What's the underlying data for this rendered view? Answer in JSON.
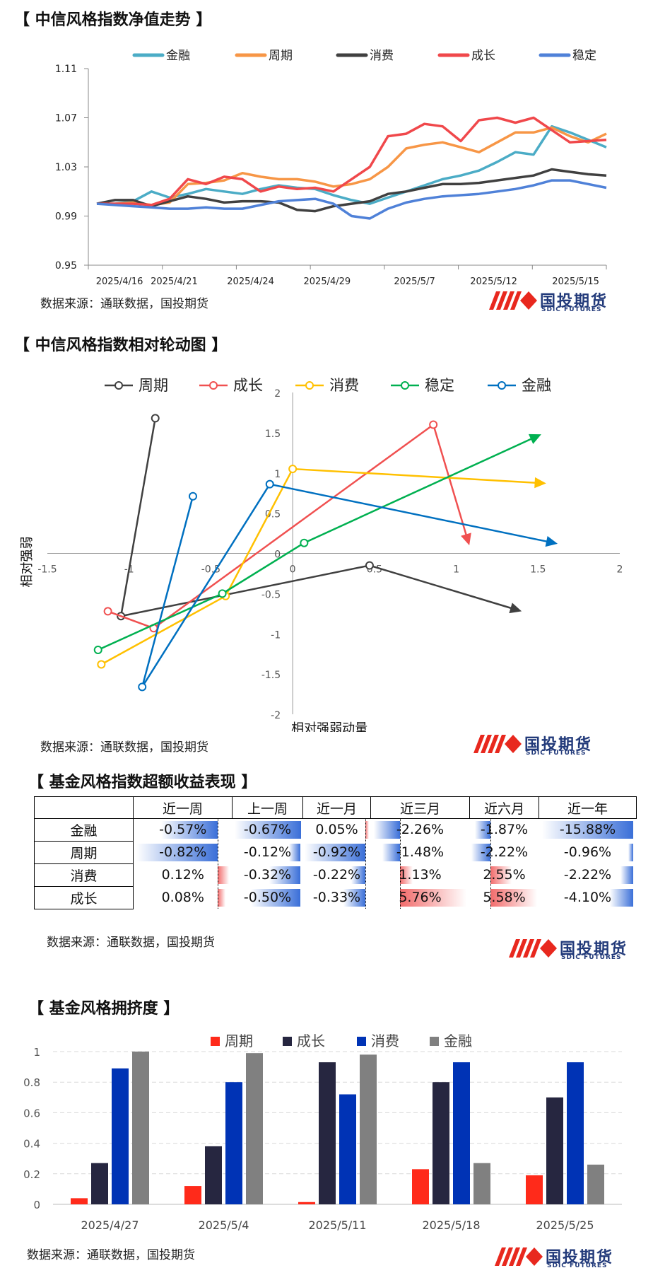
{
  "sections": {
    "s1_title": "【 中信风格指数净值走势 】",
    "s2_title": "【 中信风格指数相对轮动图 】",
    "s3_title": "【 基金风格指数超额收益表现 】",
    "s4_title": "【 基金风格拥挤度 】"
  },
  "source_label": "数据来源：通联数据，国投期货",
  "logo": {
    "cn": "国投期货",
    "en": "SDIC FUTURES"
  },
  "colors": {
    "s1": {
      "金融": "#4bacc6",
      "周期": "#f79646",
      "消费": "#404040",
      "成长": "#f0484b",
      "稳定": "#4f81d8"
    },
    "s2": {
      "周期": "#404040",
      "成长": "#f05050",
      "消费": "#ffc000",
      "稳定": "#00b050",
      "金融": "#0070c0"
    },
    "s4": {
      "周期": "#ff2a1a",
      "成长": "#262640",
      "消费": "#0033b5",
      "金融": "#808080"
    },
    "neg_bar": "#3a6fd8",
    "pos_bar": "#f26b6b"
  },
  "chart_data": [
    {
      "type": "line",
      "title": "",
      "legend": [
        "金融",
        "周期",
        "消费",
        "成长",
        "稳定"
      ],
      "legend_position": "top",
      "ylim": [
        0.95,
        1.11
      ],
      "yticks": [
        "0.95",
        "0.99",
        "1.03",
        "1.07",
        "1.11"
      ],
      "xtick_labels": [
        "2025/4/16",
        "2025/4/21",
        "2025/4/24",
        "2025/4/29",
        "2025/5/7",
        "2025/5/12",
        "2025/5/15"
      ],
      "series": [
        {
          "name": "金融",
          "values": [
            1.0,
            1.0,
            1.002,
            1.01,
            1.005,
            1.008,
            1.012,
            1.01,
            1.008,
            1.012,
            1.015,
            1.013,
            1.012,
            1.007,
            1.003,
            1.0,
            1.005,
            1.01,
            1.015,
            1.02,
            1.023,
            1.027,
            1.034,
            1.042,
            1.04,
            1.063,
            1.058,
            1.052,
            1.046
          ]
        },
        {
          "name": "周期",
          "values": [
            1.0,
            1.0,
            1.001,
            0.999,
            1.001,
            1.016,
            1.017,
            1.019,
            1.025,
            1.022,
            1.02,
            1.02,
            1.018,
            1.014,
            1.016,
            1.02,
            1.03,
            1.045,
            1.048,
            1.05,
            1.046,
            1.042,
            1.05,
            1.058,
            1.058,
            1.062,
            1.055,
            1.05,
            1.057
          ]
        },
        {
          "name": "消费",
          "values": [
            1.0,
            1.003,
            1.003,
            0.998,
            1.002,
            1.006,
            1.004,
            1.001,
            1.002,
            1.002,
            1.001,
            0.995,
            0.994,
            0.998,
            1.0,
            1.002,
            1.008,
            1.01,
            1.013,
            1.016,
            1.016,
            1.017,
            1.019,
            1.021,
            1.023,
            1.028,
            1.026,
            1.024,
            1.023
          ]
        },
        {
          "name": "成长",
          "values": [
            1.0,
            1.0,
            1.0,
            0.999,
            1.004,
            1.02,
            1.016,
            1.022,
            1.02,
            1.01,
            1.014,
            1.012,
            1.013,
            1.01,
            1.02,
            1.03,
            1.055,
            1.057,
            1.065,
            1.063,
            1.051,
            1.068,
            1.07,
            1.066,
            1.07,
            1.06,
            1.05,
            1.051,
            1.052
          ]
        },
        {
          "name": "稳定",
          "values": [
            1.0,
            0.999,
            0.998,
            0.997,
            0.996,
            0.996,
            0.997,
            0.996,
            0.996,
            0.999,
            1.002,
            1.003,
            1.004,
            1.0,
            0.99,
            0.988,
            0.996,
            1.001,
            1.004,
            1.006,
            1.007,
            1.008,
            1.01,
            1.012,
            1.015,
            1.019,
            1.019,
            1.016,
            1.013
          ]
        }
      ]
    },
    {
      "type": "scatter",
      "title": "",
      "xlabel": "相对强弱动量",
      "ylabel": "相对强弱",
      "xlim": [
        -1.5,
        2
      ],
      "ylim": [
        -2,
        2
      ],
      "xticks": [
        "-1.5",
        "-1",
        "-0.5",
        "0",
        "0.5",
        "1",
        "1.5",
        "2"
      ],
      "yticks": [
        "-2",
        "-1.5",
        "-1",
        "-0.5",
        "0",
        "0.5",
        "1",
        "1.5",
        "2"
      ],
      "legend": [
        "周期",
        "成长",
        "消费",
        "稳定",
        "金融"
      ],
      "legend_position": "top",
      "series": [
        {
          "name": "周期",
          "points": [
            [
              -0.84,
              1.68
            ],
            [
              -1.05,
              -0.78
            ],
            [
              0.47,
              -0.15
            ],
            [
              1.4,
              -0.72
            ]
          ]
        },
        {
          "name": "成长",
          "points": [
            [
              -1.13,
              -0.72
            ],
            [
              -0.85,
              -0.93
            ],
            [
              0.86,
              1.6
            ],
            [
              1.08,
              0.1
            ]
          ]
        },
        {
          "name": "消费",
          "points": [
            [
              -1.17,
              -1.38
            ],
            [
              -0.41,
              -0.53
            ],
            [
              0.0,
              1.05
            ],
            [
              1.55,
              0.87
            ]
          ]
        },
        {
          "name": "稳定",
          "points": [
            [
              -1.19,
              -1.2
            ],
            [
              -0.43,
              -0.5
            ],
            [
              0.07,
              0.13
            ],
            [
              1.52,
              1.48
            ]
          ]
        },
        {
          "name": "金融",
          "points": [
            [
              -0.61,
              0.71
            ],
            [
              -0.92,
              -1.66
            ],
            [
              -0.14,
              0.86
            ],
            [
              1.62,
              0.12
            ]
          ]
        }
      ]
    },
    {
      "type": "table",
      "title": "",
      "columns": [
        "近一周",
        "上一周",
        "近一月",
        "近三月",
        "近六月",
        "近一年"
      ],
      "rows": [
        {
          "name": "金融",
          "values": [
            -0.57,
            -0.67,
            0.05,
            -2.26,
            -1.87,
            -15.88
          ]
        },
        {
          "name": "周期",
          "values": [
            -0.82,
            -0.12,
            -0.92,
            -1.48,
            -2.22,
            -0.96
          ]
        },
        {
          "name": "消费",
          "values": [
            0.12,
            -0.32,
            -0.22,
            1.13,
            2.55,
            -2.22
          ]
        },
        {
          "name": "成长",
          "values": [
            0.08,
            -0.5,
            -0.33,
            5.76,
            5.58,
            -4.1
          ]
        }
      ],
      "display": [
        [
          "-0.57%",
          "-0.67%",
          "0.05%",
          "-2.26%",
          "-1.87%",
          "-15.88%"
        ],
        [
          "-0.82%",
          "-0.12%",
          "-0.92%",
          "-1.48%",
          "-2.22%",
          "-0.96%"
        ],
        [
          "0.12%",
          "-0.32%",
          "-0.22%",
          "1.13%",
          "2.55%",
          "-2.22%"
        ],
        [
          "0.08%",
          "-0.50%",
          "-0.33%",
          "5.76%",
          "5.58%",
          "-4.10%"
        ]
      ]
    },
    {
      "type": "bar",
      "title": "",
      "categories": [
        "2025/4/27",
        "2025/5/4",
        "2025/5/11",
        "2025/5/18",
        "2025/5/25"
      ],
      "ylim": [
        0,
        1
      ],
      "yticks": [
        "0",
        "0.2",
        "0.4",
        "0.6",
        "0.8",
        "1"
      ],
      "legend_position": "top",
      "series": [
        {
          "name": "周期",
          "values": [
            0.04,
            0.12,
            0.015,
            0.23,
            0.19
          ]
        },
        {
          "name": "成长",
          "values": [
            0.27,
            0.38,
            0.93,
            0.8,
            0.7
          ]
        },
        {
          "name": "消费",
          "values": [
            0.89,
            0.8,
            0.72,
            0.93,
            0.93
          ]
        },
        {
          "name": "金融",
          "values": [
            1.0,
            0.99,
            0.98,
            0.27,
            0.26
          ]
        }
      ]
    }
  ]
}
